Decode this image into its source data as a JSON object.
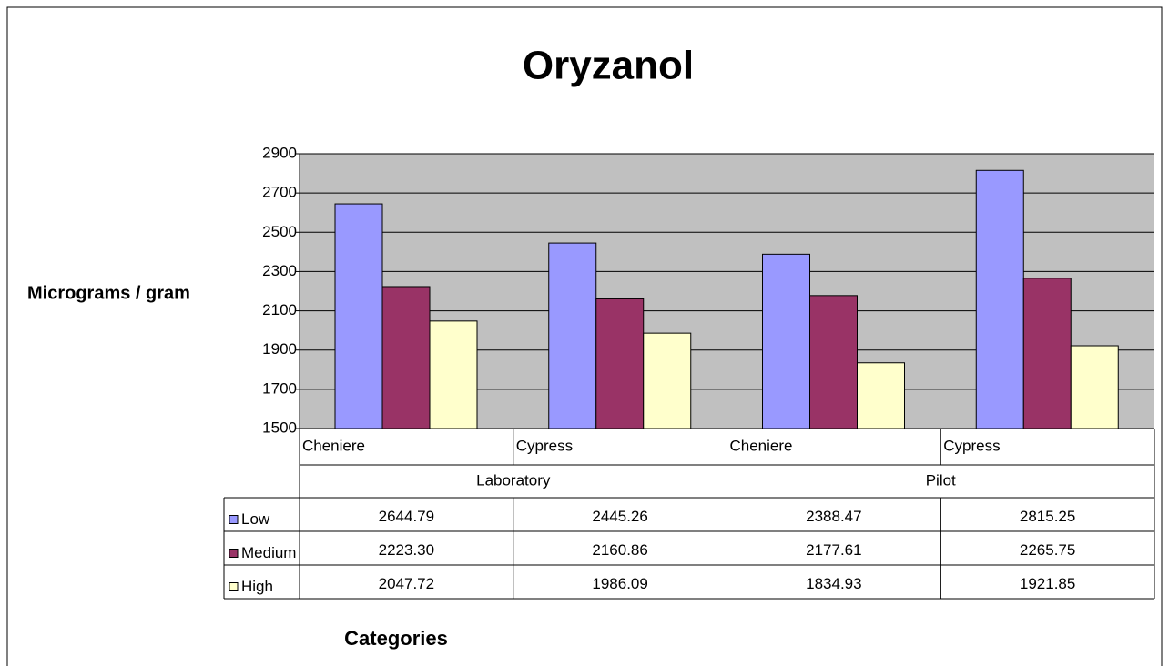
{
  "chart_data": {
    "type": "bar",
    "title": "Oryzanol",
    "y_label": "Micrograms / gram",
    "x_label": "Categories",
    "categories": [
      "Cheniere",
      "Cypress",
      "Cheniere",
      "Cypress"
    ],
    "groups": [
      {
        "name": "Laboratory",
        "span": 2
      },
      {
        "name": "Pilot",
        "span": 2
      }
    ],
    "series": [
      {
        "name": "Low",
        "color": "#9999ff",
        "values": [
          2644.79,
          2445.26,
          2388.47,
          2815.25
        ],
        "value_labels": [
          "2644.79",
          "2445.26",
          "2388.47",
          "2815.25"
        ]
      },
      {
        "name": "Medium",
        "color": "#993366",
        "values": [
          2223.3,
          2160.86,
          2177.61,
          2265.75
        ],
        "value_labels": [
          "2223.30",
          "2160.86",
          "2177.61",
          "2265.75"
        ]
      },
      {
        "name": "High",
        "color": "#ffffcc",
        "values": [
          2047.72,
          1986.09,
          1834.93,
          1921.85
        ],
        "value_labels": [
          "2047.72",
          "1986.09",
          "1834.93",
          "1921.85"
        ]
      }
    ],
    "ylim": [
      1500,
      2900
    ],
    "yticks": [
      1500,
      1700,
      1900,
      2100,
      2300,
      2500,
      2700,
      2900
    ],
    "grid": true,
    "plot_background": "#c0c0c0"
  }
}
